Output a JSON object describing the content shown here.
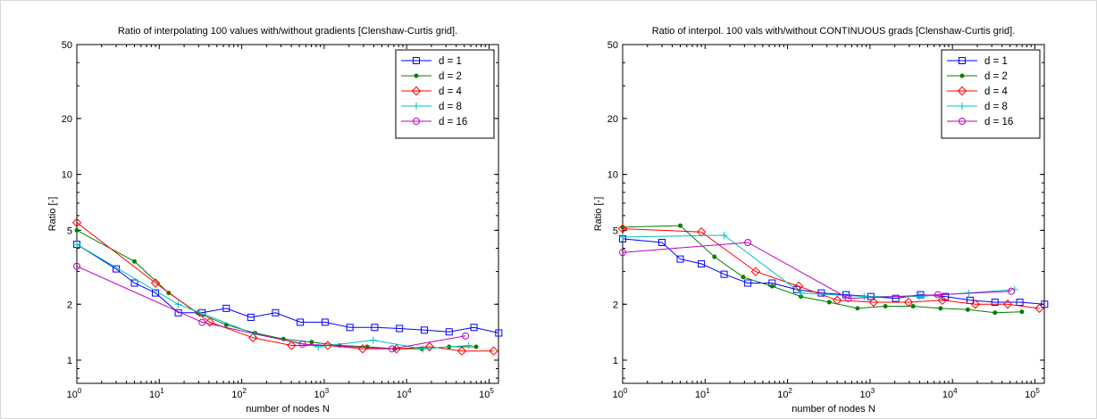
{
  "chart_data": [
    {
      "type": "line",
      "title": "Ratio of interpolating 100 values with/without gradients [Clenshaw-Curtis grid].",
      "xlabel": "number of nodes N",
      "ylabel": "Ratio [-]",
      "xscale": "log",
      "yscale": "log",
      "xlim": [
        1,
        130000
      ],
      "ylim": [
        0.75,
        50
      ],
      "xticks": [
        1,
        10,
        100,
        1000,
        10000,
        100000
      ],
      "xtick_labels": [
        {
          "base": "10",
          "exp": "0"
        },
        {
          "base": "10",
          "exp": "1"
        },
        {
          "base": "10",
          "exp": "2"
        },
        {
          "base": "10",
          "exp": "3"
        },
        {
          "base": "10",
          "exp": "4"
        },
        {
          "base": "10",
          "exp": "5"
        }
      ],
      "yticks": [
        1,
        2,
        5,
        10,
        20,
        50
      ],
      "ytick_labels": [
        "1",
        "2",
        "5",
        "10",
        "20",
        "50"
      ],
      "legend_position": "top-right",
      "series": [
        {
          "name": "d = 1",
          "color": "#0000ff",
          "marker": "square",
          "x": [
            1,
            3,
            5,
            9,
            17,
            33,
            65,
            129,
            257,
            513,
            1025,
            2049,
            4097,
            8193,
            16385,
            32769,
            65537,
            131073
          ],
          "y": [
            4.2,
            3.1,
            2.6,
            2.3,
            1.8,
            1.8,
            1.9,
            1.7,
            1.8,
            1.6,
            1.6,
            1.5,
            1.5,
            1.48,
            1.45,
            1.42,
            1.5,
            1.4
          ]
        },
        {
          "name": "d = 2",
          "color": "#008000",
          "marker": "dot",
          "x": [
            1,
            5,
            13,
            29,
            65,
            145,
            321,
            705,
            1537,
            3329,
            7169,
            15361,
            32769,
            69633
          ],
          "y": [
            5.0,
            3.4,
            2.3,
            1.8,
            1.55,
            1.4,
            1.3,
            1.25,
            1.2,
            1.18,
            1.15,
            1.15,
            1.18,
            1.18
          ]
        },
        {
          "name": "d = 4",
          "color": "#ff0000",
          "marker": "diamond",
          "x": [
            1,
            9,
            41,
            137,
            401,
            1105,
            2929,
            7537,
            18945,
            46721,
            113409
          ],
          "y": [
            5.5,
            2.6,
            1.6,
            1.32,
            1.2,
            1.2,
            1.15,
            1.15,
            1.18,
            1.12,
            1.12
          ]
        },
        {
          "name": "d = 8",
          "color": "#00bfbf",
          "marker": "plus",
          "x": [
            1,
            17,
            145,
            849,
            3937,
            15713,
            56737
          ],
          "y": [
            4.2,
            2.0,
            1.38,
            1.18,
            1.28,
            1.15,
            1.2
          ]
        },
        {
          "name": "d = 16",
          "color": "#bf00bf",
          "marker": "circle",
          "x": [
            1,
            33,
            545,
            6657,
            51713
          ],
          "y": [
            3.2,
            1.6,
            1.22,
            1.15,
            1.35
          ]
        }
      ]
    },
    {
      "type": "line",
      "title": "Ratio of interpol. 100 vals with/without CONTINUOUS grads [Clenshaw-Curtis grid].",
      "xlabel": "number of nodes N",
      "ylabel": "Ratio [-]",
      "xscale": "log",
      "yscale": "log",
      "xlim": [
        1,
        130000
      ],
      "ylim": [
        0.75,
        50
      ],
      "xticks": [
        1,
        10,
        100,
        1000,
        10000,
        100000
      ],
      "xtick_labels": [
        {
          "base": "10",
          "exp": "0"
        },
        {
          "base": "10",
          "exp": "1"
        },
        {
          "base": "10",
          "exp": "2"
        },
        {
          "base": "10",
          "exp": "3"
        },
        {
          "base": "10",
          "exp": "4"
        },
        {
          "base": "10",
          "exp": "5"
        }
      ],
      "yticks": [
        1,
        2,
        5,
        10,
        20,
        50
      ],
      "ytick_labels": [
        "1",
        "2",
        "5",
        "10",
        "20",
        "50"
      ],
      "legend_position": "top-right",
      "series": [
        {
          "name": "d = 1",
          "color": "#0000ff",
          "marker": "square",
          "x": [
            1,
            3,
            5,
            9,
            17,
            33,
            65,
            129,
            257,
            513,
            1025,
            2049,
            4097,
            8193,
            16385,
            32769,
            65537,
            131073
          ],
          "y": [
            4.5,
            4.3,
            3.5,
            3.3,
            2.9,
            2.6,
            2.6,
            2.4,
            2.3,
            2.25,
            2.2,
            2.15,
            2.25,
            2.2,
            2.1,
            2.05,
            2.05,
            2.0
          ]
        },
        {
          "name": "d = 2",
          "color": "#008000",
          "marker": "dot",
          "x": [
            1,
            5,
            13,
            29,
            65,
            145,
            321,
            705,
            1537,
            3329,
            7169,
            15361,
            32769,
            69633
          ],
          "y": [
            5.2,
            5.3,
            3.6,
            2.8,
            2.5,
            2.2,
            2.05,
            1.9,
            1.95,
            1.95,
            1.9,
            1.87,
            1.8,
            1.82
          ]
        },
        {
          "name": "d = 4",
          "color": "#ff0000",
          "marker": "diamond",
          "x": [
            1,
            9,
            41,
            137,
            401,
            1105,
            2929,
            7537,
            18945,
            46721,
            113409
          ],
          "y": [
            5.1,
            4.9,
            3.0,
            2.5,
            2.1,
            2.05,
            2.05,
            2.1,
            2.0,
            2.0,
            1.9
          ]
        },
        {
          "name": "d = 8",
          "color": "#00bfbf",
          "marker": "plus",
          "x": [
            1,
            17,
            145,
            849,
            3937,
            15713,
            56737
          ],
          "y": [
            4.6,
            4.7,
            2.3,
            2.2,
            2.2,
            2.3,
            2.4
          ]
        },
        {
          "name": "d = 16",
          "color": "#bf00bf",
          "marker": "circle",
          "x": [
            1,
            33,
            545,
            6657,
            51713
          ],
          "y": [
            3.8,
            4.3,
            2.15,
            2.25,
            2.35
          ]
        }
      ]
    }
  ]
}
